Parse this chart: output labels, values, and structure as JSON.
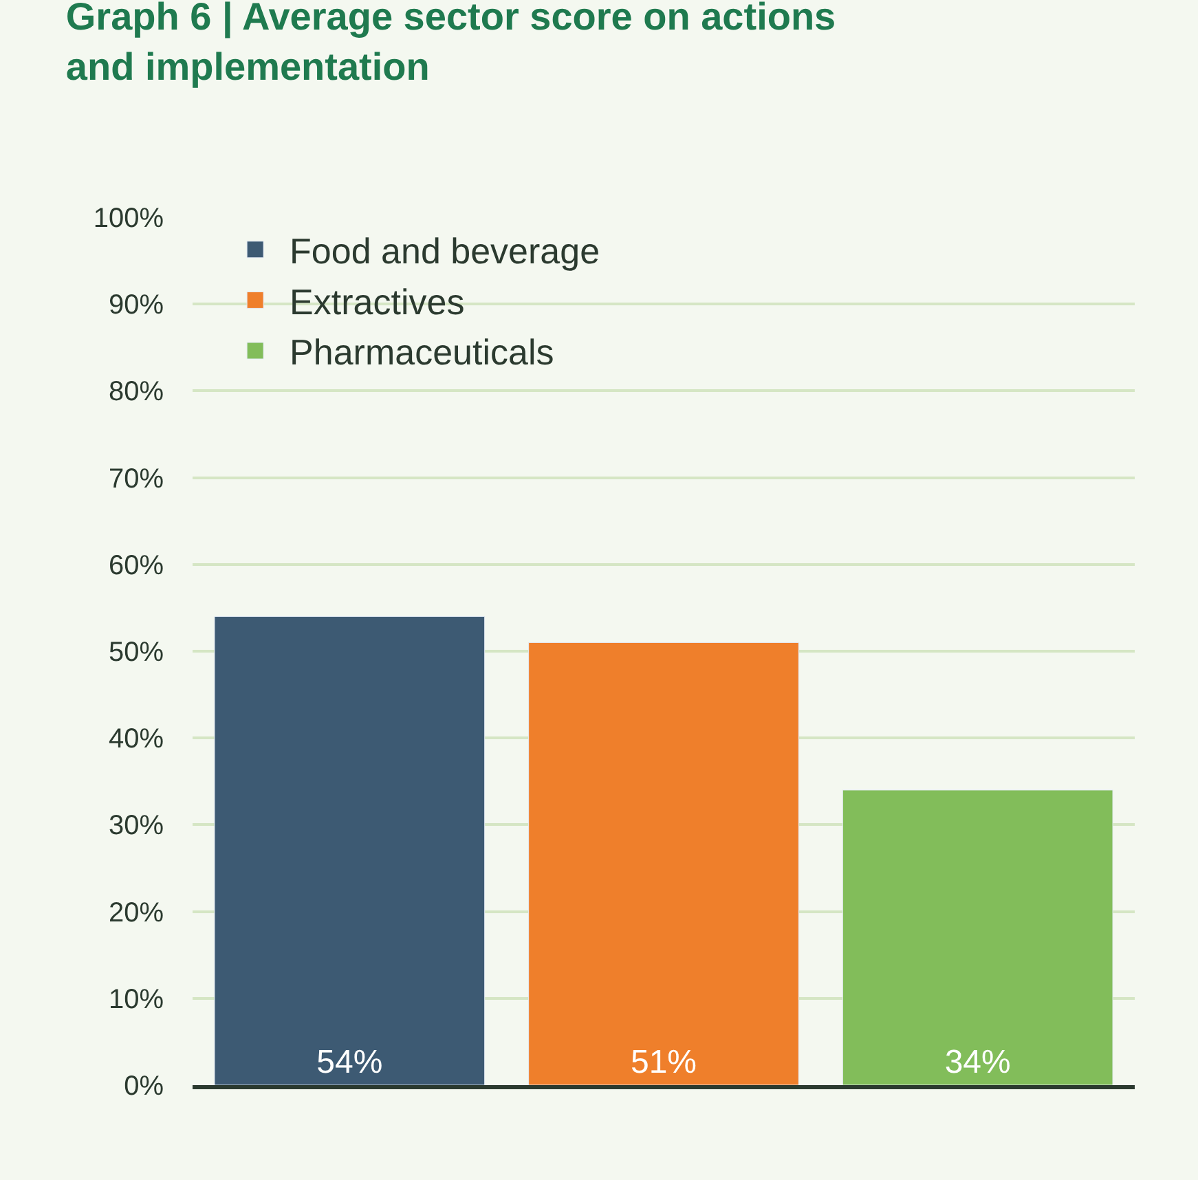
{
  "chart_data": {
    "type": "bar",
    "title": "Graph 6 | Average sector score on actions and implementation",
    "categories": [
      null,
      null,
      null
    ],
    "series": [
      {
        "name": "Food and beverage",
        "color": "#3d5a73",
        "values": [
          54,
          null,
          null
        ]
      },
      {
        "name": "Extractives",
        "color": "#ef7f2b",
        "values": [
          null,
          51,
          null
        ]
      },
      {
        "name": "Pharmaceuticals",
        "color": "#82bd5a",
        "values": [
          null,
          null,
          34
        ]
      }
    ],
    "ylim": [
      0,
      100
    ],
    "yticks": [
      {
        "value": 0,
        "label": "0%"
      },
      {
        "value": 10,
        "label": "10%"
      },
      {
        "value": 20,
        "label": "20%"
      },
      {
        "value": 30,
        "label": "30%"
      },
      {
        "value": 40,
        "label": "40%"
      },
      {
        "value": 50,
        "label": "50%"
      },
      {
        "value": 60,
        "label": "60%"
      },
      {
        "value": 70,
        "label": "70%"
      },
      {
        "value": 80,
        "label": "80%"
      },
      {
        "value": 90,
        "label": "90%"
      },
      {
        "value": 100,
        "label": "100%"
      }
    ],
    "value_labels": [
      "54%",
      "51%",
      "34%"
    ],
    "grid": "y",
    "legend": "top left"
  }
}
